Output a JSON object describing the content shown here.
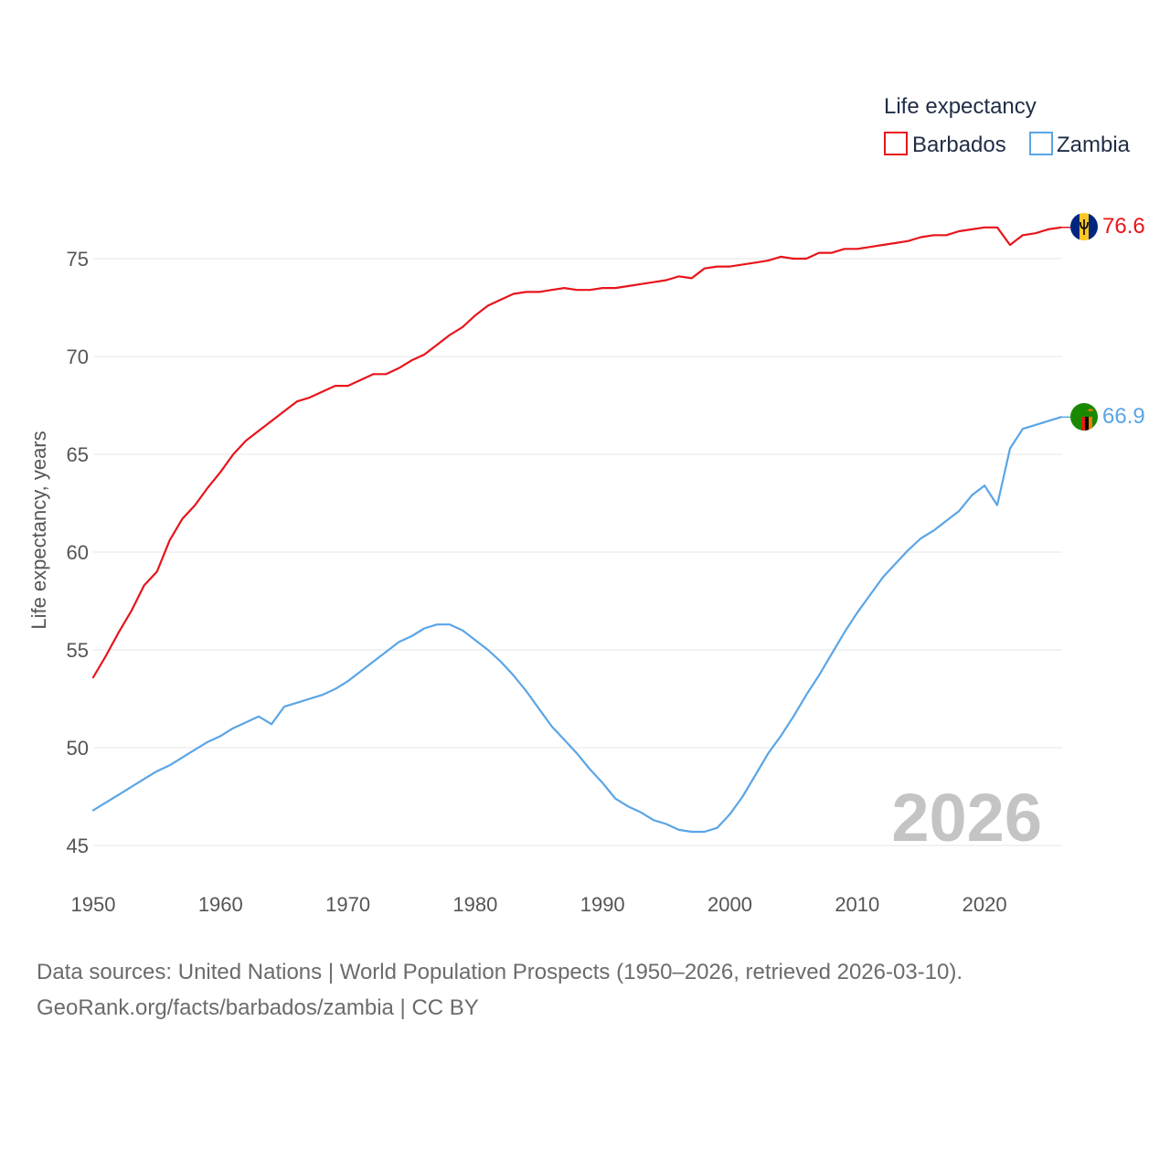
{
  "colors": {
    "barbados": "#e8141b",
    "zambia": "#5aa5e6",
    "grid": "#e6e6e6",
    "axis_text": "#555555",
    "year_stamp": "#c4c4c4",
    "legend_text": "#1f2d46"
  },
  "legend": {
    "title": "Life expectancy",
    "items": [
      "Barbados",
      "Zambia"
    ]
  },
  "year_stamp": "2026",
  "source": {
    "line1": "Data sources: United Nations | World Population Prospects (1950–2026, retrieved 2026-03-10).",
    "line2": "GeoRank.org/facts/barbados/zambia | CC BY"
  },
  "chart_data": {
    "type": "line",
    "title": "Life expectancy",
    "xlabel": "",
    "ylabel": "Life expectancy, years",
    "xlim": [
      1950,
      2026
    ],
    "ylim": [
      45,
      78
    ],
    "x_ticks": [
      1950,
      1960,
      1970,
      1980,
      1990,
      2000,
      2010,
      2020
    ],
    "y_ticks": [
      45,
      50,
      55,
      60,
      65,
      70,
      75
    ],
    "grid": true,
    "legend_position": "top-right",
    "series": [
      {
        "name": "Barbados",
        "end_label": "76.6",
        "flag_icon": "barbados-flag-icon",
        "x": [
          1950,
          1951,
          1952,
          1953,
          1954,
          1955,
          1956,
          1957,
          1958,
          1959,
          1960,
          1961,
          1962,
          1963,
          1964,
          1965,
          1966,
          1967,
          1968,
          1969,
          1970,
          1971,
          1972,
          1973,
          1974,
          1975,
          1976,
          1977,
          1978,
          1979,
          1980,
          1981,
          1982,
          1983,
          1984,
          1985,
          1986,
          1987,
          1988,
          1989,
          1990,
          1991,
          1992,
          1993,
          1994,
          1995,
          1996,
          1997,
          1998,
          1999,
          2000,
          2001,
          2002,
          2003,
          2004,
          2005,
          2006,
          2007,
          2008,
          2009,
          2010,
          2011,
          2012,
          2013,
          2014,
          2015,
          2016,
          2017,
          2018,
          2019,
          2020,
          2021,
          2022,
          2023,
          2024,
          2025,
          2026
        ],
        "values": [
          53.6,
          54.7,
          55.9,
          57.0,
          58.3,
          59.0,
          60.6,
          61.7,
          62.4,
          63.3,
          64.1,
          65.0,
          65.7,
          66.2,
          66.7,
          67.2,
          67.7,
          67.9,
          68.2,
          68.5,
          68.5,
          68.8,
          69.1,
          69.1,
          69.4,
          69.8,
          70.1,
          70.6,
          71.1,
          71.5,
          72.1,
          72.6,
          72.9,
          73.2,
          73.3,
          73.3,
          73.4,
          73.5,
          73.4,
          73.4,
          73.5,
          73.5,
          73.6,
          73.7,
          73.8,
          73.9,
          74.1,
          74.0,
          74.5,
          74.6,
          74.6,
          74.7,
          74.8,
          74.9,
          75.1,
          75.0,
          75.0,
          75.3,
          75.3,
          75.5,
          75.5,
          75.6,
          75.7,
          75.8,
          75.9,
          76.1,
          76.2,
          76.2,
          76.4,
          76.5,
          76.6,
          76.6,
          75.7,
          76.2,
          76.3,
          76.5,
          76.6
        ]
      },
      {
        "name": "Zambia",
        "end_label": "66.9",
        "flag_icon": "zambia-flag-icon",
        "x": [
          1950,
          1951,
          1952,
          1953,
          1954,
          1955,
          1956,
          1957,
          1958,
          1959,
          1960,
          1961,
          1962,
          1963,
          1964,
          1965,
          1966,
          1967,
          1968,
          1969,
          1970,
          1971,
          1972,
          1973,
          1974,
          1975,
          1976,
          1977,
          1978,
          1979,
          1980,
          1981,
          1982,
          1983,
          1984,
          1985,
          1986,
          1987,
          1988,
          1989,
          1990,
          1991,
          1992,
          1993,
          1994,
          1995,
          1996,
          1997,
          1998,
          1999,
          2000,
          2001,
          2002,
          2003,
          2004,
          2005,
          2006,
          2007,
          2008,
          2009,
          2010,
          2011,
          2012,
          2013,
          2014,
          2015,
          2016,
          2017,
          2018,
          2019,
          2020,
          2021,
          2022,
          2023,
          2024,
          2025,
          2026
        ],
        "values": [
          46.8,
          47.2,
          47.6,
          48.0,
          48.4,
          48.8,
          49.1,
          49.5,
          49.9,
          50.3,
          50.6,
          51.0,
          51.3,
          51.6,
          51.2,
          52.1,
          52.3,
          52.5,
          52.7,
          53.0,
          53.4,
          53.9,
          54.4,
          54.9,
          55.4,
          55.7,
          56.1,
          56.3,
          56.3,
          56.0,
          55.5,
          55.0,
          54.4,
          53.7,
          52.9,
          52.0,
          51.1,
          50.4,
          49.7,
          48.9,
          48.2,
          47.4,
          47.0,
          46.7,
          46.3,
          46.1,
          45.8,
          45.7,
          45.7,
          45.9,
          46.6,
          47.5,
          48.6,
          49.7,
          50.6,
          51.6,
          52.7,
          53.7,
          54.8,
          55.9,
          56.9,
          57.8,
          58.7,
          59.4,
          60.1,
          60.7,
          61.1,
          61.6,
          62.1,
          62.9,
          63.4,
          62.4,
          65.3,
          66.3,
          66.5,
          66.7,
          66.9
        ]
      }
    ]
  }
}
